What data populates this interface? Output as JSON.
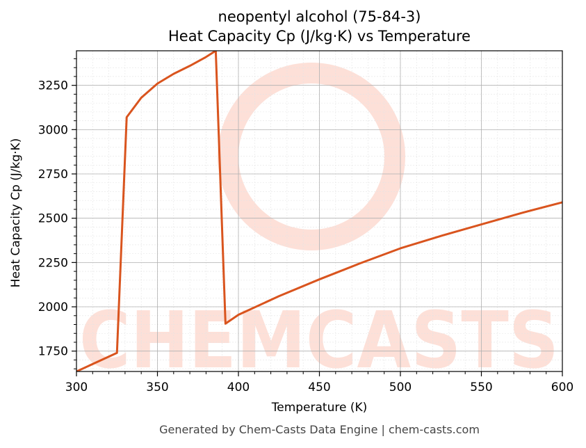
{
  "title": "neopentyl alcohol (75-84-3)",
  "subtitle": "Heat Capacity Cp (J/kg·K) vs Temperature",
  "footer": "Generated by Chem-Casts Data Engine | chem-casts.com",
  "watermark": "CHEMCASTS",
  "colors": {
    "line": "#d9541e",
    "watermark": "#fde0d8",
    "grid_major": "#b0b0b0",
    "grid_minor": "#e4e4e4"
  },
  "chart_data": {
    "type": "line",
    "xlabel": "Temperature (K)",
    "ylabel": "Heat Capacity Cp (J/kg·K)",
    "xlim": [
      300,
      600
    ],
    "ylim": [
      1635,
      3445
    ],
    "xticks": [
      300,
      350,
      400,
      450,
      500,
      550,
      600
    ],
    "yticks": [
      1750,
      2000,
      2250,
      2500,
      2750,
      3000,
      3250
    ],
    "grid": true,
    "series": [
      {
        "x": [
          300,
          325,
          331,
          340,
          350,
          360,
          370,
          380,
          386,
          392,
          400,
          425,
          450,
          475,
          500,
          525,
          550,
          575,
          600
        ],
        "y": [
          1635,
          1740,
          3070,
          3180,
          3260,
          3315,
          3360,
          3410,
          3445,
          1905,
          1955,
          2060,
          2155,
          2245,
          2330,
          2400,
          2465,
          2530,
          2590
        ]
      }
    ]
  }
}
